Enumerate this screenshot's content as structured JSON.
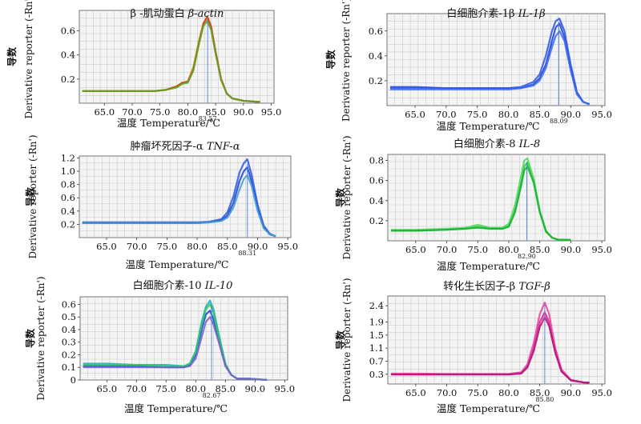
{
  "chart_data": [
    {
      "type": "line",
      "title": "β -肌动蛋白",
      "title_italic": "β-actin",
      "xlabel": "温度  Temperature/℃",
      "ylabel_cn": "导数",
      "ylabel_en": "Derivative reporter (-Rn')",
      "xlim": [
        60.5,
        95.5
      ],
      "ylim": [
        0.0,
        0.77
      ],
      "xticks": [
        "65.0",
        "70.0",
        "75.0",
        "80.0",
        "85.0",
        "90.0",
        "95.0"
      ],
      "yticks": [
        "0.2",
        "0.4",
        "0.6"
      ],
      "peak_label": "83.57",
      "peak_x": 83.57,
      "series": [
        {
          "color": "#c8a01a",
          "x": [
            61,
            65,
            70,
            74,
            76,
            78,
            79,
            80,
            81,
            82,
            82.8,
            83.5,
            84.2,
            85,
            86,
            87,
            88,
            90,
            93
          ],
          "y": [
            0.1,
            0.1,
            0.1,
            0.1,
            0.11,
            0.14,
            0.17,
            0.18,
            0.3,
            0.52,
            0.66,
            0.7,
            0.62,
            0.42,
            0.2,
            0.08,
            0.04,
            0.02,
            0.01
          ]
        },
        {
          "color": "#d23a12",
          "x": [
            61,
            65,
            70,
            74,
            76,
            78,
            79,
            80,
            81,
            82,
            82.8,
            83.5,
            84.2,
            85,
            86,
            87,
            88,
            90,
            93
          ],
          "y": [
            0.1,
            0.1,
            0.1,
            0.1,
            0.11,
            0.14,
            0.17,
            0.18,
            0.28,
            0.5,
            0.66,
            0.72,
            0.64,
            0.43,
            0.2,
            0.08,
            0.04,
            0.02,
            0.01
          ]
        },
        {
          "color": "#5aa628",
          "x": [
            61,
            65,
            70,
            74,
            76,
            78,
            79,
            80,
            81,
            82,
            82.8,
            83.5,
            84.2,
            85,
            86,
            87,
            88,
            90,
            93
          ],
          "y": [
            0.1,
            0.1,
            0.1,
            0.1,
            0.11,
            0.13,
            0.16,
            0.17,
            0.27,
            0.49,
            0.64,
            0.68,
            0.61,
            0.41,
            0.19,
            0.08,
            0.04,
            0.02,
            0.01
          ]
        }
      ]
    },
    {
      "type": "line",
      "title": "白细胞介素-1β",
      "title_italic": "IL-1β",
      "xlabel": "温度  Temperature/℃",
      "ylabel_cn": "导数",
      "ylabel_en": "Derivative reporter (-Rn')",
      "xlim": [
        60.5,
        95.5
      ],
      "ylim": [
        0.0,
        0.74
      ],
      "xticks": [
        "65.0",
        "70.0",
        "75.0",
        "80.0",
        "85.0",
        "90.0",
        "95.0"
      ],
      "yticks": [
        "0.2",
        "0.4",
        "0.6"
      ],
      "peak_label": "88.09",
      "peak_x": 88.09,
      "series": [
        {
          "color": "#1a3fd6",
          "x": [
            61,
            65,
            70,
            75,
            80,
            82,
            84,
            85,
            86,
            87,
            87.6,
            88.2,
            89,
            90,
            91,
            92,
            93
          ],
          "y": [
            0.15,
            0.15,
            0.14,
            0.14,
            0.14,
            0.14,
            0.17,
            0.22,
            0.33,
            0.52,
            0.63,
            0.66,
            0.55,
            0.3,
            0.1,
            0.03,
            0.01
          ]
        },
        {
          "color": "#2d55e8",
          "x": [
            61,
            65,
            70,
            75,
            80,
            82,
            84,
            85,
            86,
            87,
            87.6,
            88.2,
            89,
            90,
            91,
            92,
            93
          ],
          "y": [
            0.14,
            0.14,
            0.14,
            0.14,
            0.14,
            0.15,
            0.19,
            0.25,
            0.4,
            0.6,
            0.68,
            0.7,
            0.6,
            0.33,
            0.11,
            0.03,
            0.01
          ]
        },
        {
          "color": "#3a6cf0",
          "x": [
            61,
            65,
            70,
            75,
            80,
            82,
            84,
            85,
            86,
            87,
            87.6,
            88.2,
            89,
            90,
            91,
            92,
            93
          ],
          "y": [
            0.13,
            0.13,
            0.13,
            0.13,
            0.13,
            0.14,
            0.16,
            0.2,
            0.3,
            0.47,
            0.56,
            0.6,
            0.52,
            0.28,
            0.09,
            0.03,
            0.01
          ]
        }
      ]
    },
    {
      "type": "line",
      "title": "肿瘤坏死因子-α",
      "title_italic": "TNF-α",
      "xlabel": "温度  Temperature/℃",
      "ylabel_cn": "导数",
      "ylabel_en": "Derivative reporter (-Rn')",
      "xlim": [
        60.5,
        95.5
      ],
      "ylim": [
        0.0,
        1.23
      ],
      "xticks": [
        "65.0",
        "70.0",
        "75.0",
        "80.0",
        "85.0",
        "90.0",
        "95.0"
      ],
      "yticks": [
        "0.2",
        "0.4",
        "0.6",
        "0.8",
        "1.0",
        "1.2"
      ],
      "peak_label": "88.31",
      "peak_x": 88.31,
      "series": [
        {
          "color": "#1a3fd6",
          "x": [
            61,
            65,
            70,
            75,
            80,
            82,
            84,
            85,
            86,
            87,
            87.7,
            88.3,
            89,
            90,
            91,
            92,
            93
          ],
          "y": [
            0.22,
            0.22,
            0.22,
            0.22,
            0.22,
            0.23,
            0.26,
            0.33,
            0.52,
            0.85,
            1.0,
            1.06,
            0.85,
            0.45,
            0.16,
            0.05,
            0.02
          ]
        },
        {
          "color": "#2d55e8",
          "x": [
            61,
            65,
            70,
            75,
            80,
            82,
            84,
            85,
            86,
            87,
            87.7,
            88.3,
            89,
            90,
            91,
            92,
            93
          ],
          "y": [
            0.23,
            0.23,
            0.23,
            0.23,
            0.23,
            0.24,
            0.28,
            0.38,
            0.62,
            0.98,
            1.12,
            1.18,
            0.95,
            0.5,
            0.18,
            0.06,
            0.02
          ]
        },
        {
          "color": "#3fa0c8",
          "x": [
            61,
            65,
            70,
            75,
            80,
            82,
            84,
            85,
            86,
            87,
            87.7,
            88.3,
            89,
            90,
            91,
            92,
            93
          ],
          "y": [
            0.22,
            0.22,
            0.22,
            0.22,
            0.22,
            0.23,
            0.25,
            0.3,
            0.45,
            0.72,
            0.88,
            0.94,
            0.78,
            0.4,
            0.14,
            0.05,
            0.02
          ]
        }
      ]
    },
    {
      "type": "line",
      "title": "白细胞介素-8",
      "title_italic": "IL-8",
      "xlabel": "温度  Temperature/℃",
      "ylabel_cn": "导数",
      "ylabel_en": "Derivative reporter (-Rn')",
      "xlim": [
        60.5,
        95.5
      ],
      "ylim": [
        0.0,
        0.86
      ],
      "xticks": [
        "65.0",
        "70.0",
        "75.0",
        "80.0",
        "85.0",
        "90.0",
        "95.0"
      ],
      "yticks": [
        "0.2",
        "0.4",
        "0.6",
        "0.8"
      ],
      "peak_label": "82.90",
      "peak_x": 82.9,
      "series": [
        {
          "color": "#22c840",
          "x": [
            61,
            65,
            70,
            73,
            75,
            77,
            79,
            80,
            81,
            82,
            82.5,
            83,
            84,
            85,
            86,
            87,
            88,
            90
          ],
          "y": [
            0.1,
            0.1,
            0.11,
            0.12,
            0.14,
            0.12,
            0.12,
            0.15,
            0.3,
            0.58,
            0.74,
            0.78,
            0.6,
            0.3,
            0.1,
            0.03,
            0.01,
            0.01
          ]
        },
        {
          "color": "#4ad85c",
          "x": [
            61,
            65,
            70,
            73,
            75,
            77,
            79,
            80,
            81,
            82,
            82.5,
            83,
            84,
            85,
            86,
            87,
            88,
            90
          ],
          "y": [
            0.11,
            0.11,
            0.12,
            0.13,
            0.16,
            0.13,
            0.13,
            0.17,
            0.35,
            0.65,
            0.8,
            0.82,
            0.62,
            0.3,
            0.1,
            0.03,
            0.01,
            0.01
          ]
        },
        {
          "color": "#18b030",
          "x": [
            61,
            65,
            70,
            73,
            75,
            77,
            79,
            80,
            81,
            82,
            82.5,
            83,
            84,
            85,
            86,
            87,
            88,
            90
          ],
          "y": [
            0.1,
            0.1,
            0.11,
            0.12,
            0.13,
            0.12,
            0.12,
            0.14,
            0.28,
            0.55,
            0.7,
            0.74,
            0.58,
            0.28,
            0.09,
            0.03,
            0.01,
            0.01
          ]
        }
      ]
    },
    {
      "type": "line",
      "title": "白细胞介素-10",
      "title_italic": "IL-10",
      "xlabel": "温度  Temperature/℃",
      "ylabel_cn": "导数",
      "ylabel_en": "Derivative reporter (-Rn')",
      "xlim": [
        60.5,
        95.5
      ],
      "ylim": [
        0.0,
        0.66
      ],
      "xticks": [
        "65.0",
        "70.0",
        "75.0",
        "80.0",
        "85.0",
        "90.0",
        "95.0"
      ],
      "yticks": [
        "0",
        "0.1",
        "0.2",
        "0.3",
        "0.4",
        "0.5",
        "0.6"
      ],
      "peak_label": "82.67",
      "peak_x": 82.67,
      "series": [
        {
          "color": "#1a3fd6",
          "x": [
            61,
            65,
            70,
            75,
            78,
            79,
            80,
            81,
            81.7,
            82.4,
            83,
            84,
            85,
            86,
            87,
            89,
            92
          ],
          "y": [
            0.11,
            0.11,
            0.11,
            0.1,
            0.1,
            0.12,
            0.2,
            0.4,
            0.52,
            0.55,
            0.48,
            0.3,
            0.12,
            0.04,
            0.01,
            0.01,
            0.0
          ]
        },
        {
          "color": "#20a8b8",
          "x": [
            61,
            65,
            70,
            75,
            78,
            79,
            80,
            81,
            81.7,
            82.4,
            83,
            84,
            85,
            86,
            87,
            89,
            92
          ],
          "y": [
            0.13,
            0.13,
            0.12,
            0.12,
            0.11,
            0.13,
            0.23,
            0.46,
            0.58,
            0.63,
            0.56,
            0.34,
            0.13,
            0.04,
            0.01,
            0.01,
            0.0
          ]
        },
        {
          "color": "#2cc860",
          "x": [
            61,
            65,
            70,
            75,
            78,
            79,
            80,
            81,
            81.7,
            82.4,
            83,
            84,
            85,
            86,
            87,
            89,
            92
          ],
          "y": [
            0.12,
            0.12,
            0.12,
            0.11,
            0.11,
            0.13,
            0.22,
            0.44,
            0.56,
            0.6,
            0.53,
            0.32,
            0.12,
            0.04,
            0.01,
            0.01,
            0.0
          ]
        },
        {
          "color": "#7a5ad0",
          "x": [
            61,
            65,
            70,
            75,
            78,
            79,
            80,
            81,
            81.7,
            82.4,
            83,
            84,
            85,
            86,
            87,
            89,
            92
          ],
          "y": [
            0.1,
            0.1,
            0.1,
            0.1,
            0.1,
            0.11,
            0.17,
            0.34,
            0.46,
            0.5,
            0.44,
            0.28,
            0.11,
            0.04,
            0.01,
            0.01,
            0.0
          ]
        }
      ]
    },
    {
      "type": "line",
      "title": "转化生长因子-β",
      "title_italic": "TGF-β",
      "xlabel": "温度  Temperature/℃",
      "ylabel_cn": "导数",
      "ylabel_en": "Derivative reporter (-Rn')",
      "xlim": [
        60.5,
        95.5
      ],
      "ylim": [
        0.0,
        2.7
      ],
      "xticks": [
        "65.0",
        "70.0",
        "75.0",
        "80.0",
        "85.0",
        "90.0",
        "95.0"
      ],
      "yticks": [
        "0.3",
        "0.7",
        "1.1",
        "1.5",
        "1.9",
        "2.4"
      ],
      "peak_label": "85.80",
      "peak_x": 85.8,
      "series": [
        {
          "color": "#d81a8c",
          "x": [
            61,
            65,
            70,
            75,
            80,
            82,
            83,
            84,
            85,
            85.8,
            86.5,
            87.5,
            88.5,
            90,
            92,
            93
          ],
          "y": [
            0.3,
            0.3,
            0.3,
            0.3,
            0.3,
            0.34,
            0.55,
            1.1,
            1.9,
            2.2,
            1.9,
            1.0,
            0.4,
            0.12,
            0.05,
            0.04
          ]
        },
        {
          "color": "#e8409c",
          "x": [
            61,
            65,
            70,
            75,
            80,
            82,
            83,
            84,
            85,
            85.8,
            86.5,
            87.5,
            88.5,
            90,
            92,
            93
          ],
          "y": [
            0.32,
            0.32,
            0.31,
            0.31,
            0.31,
            0.36,
            0.6,
            1.25,
            2.15,
            2.5,
            2.15,
            1.1,
            0.45,
            0.13,
            0.05,
            0.04
          ]
        },
        {
          "color": "#b0107a",
          "x": [
            61,
            65,
            70,
            75,
            80,
            82,
            83,
            84,
            85,
            85.8,
            86.5,
            87.5,
            88.5,
            90,
            92,
            93
          ],
          "y": [
            0.29,
            0.29,
            0.29,
            0.29,
            0.29,
            0.32,
            0.5,
            1.0,
            1.75,
            2.05,
            1.78,
            0.95,
            0.38,
            0.11,
            0.05,
            0.04
          ]
        }
      ]
    }
  ]
}
